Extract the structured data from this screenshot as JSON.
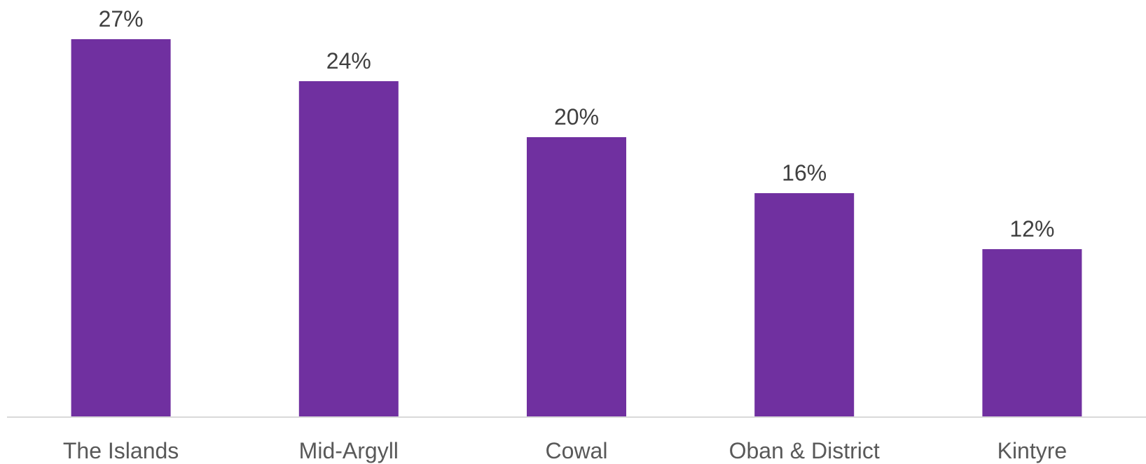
{
  "chart_data": {
    "type": "bar",
    "categories": [
      "The Islands",
      "Mid-Argyll",
      "Cowal",
      "Oban & District",
      "Kintyre"
    ],
    "values": [
      27,
      24,
      20,
      16,
      12
    ],
    "value_labels": [
      "27%",
      "24%",
      "20%",
      "16%",
      "12%"
    ],
    "unit": "%",
    "title": "",
    "xlabel": "",
    "ylabel": "",
    "ylim": [
      0,
      28
    ],
    "grid": false,
    "legend": "none",
    "bar_color": "#7030A0",
    "axis_color": "#D9D9D9"
  }
}
